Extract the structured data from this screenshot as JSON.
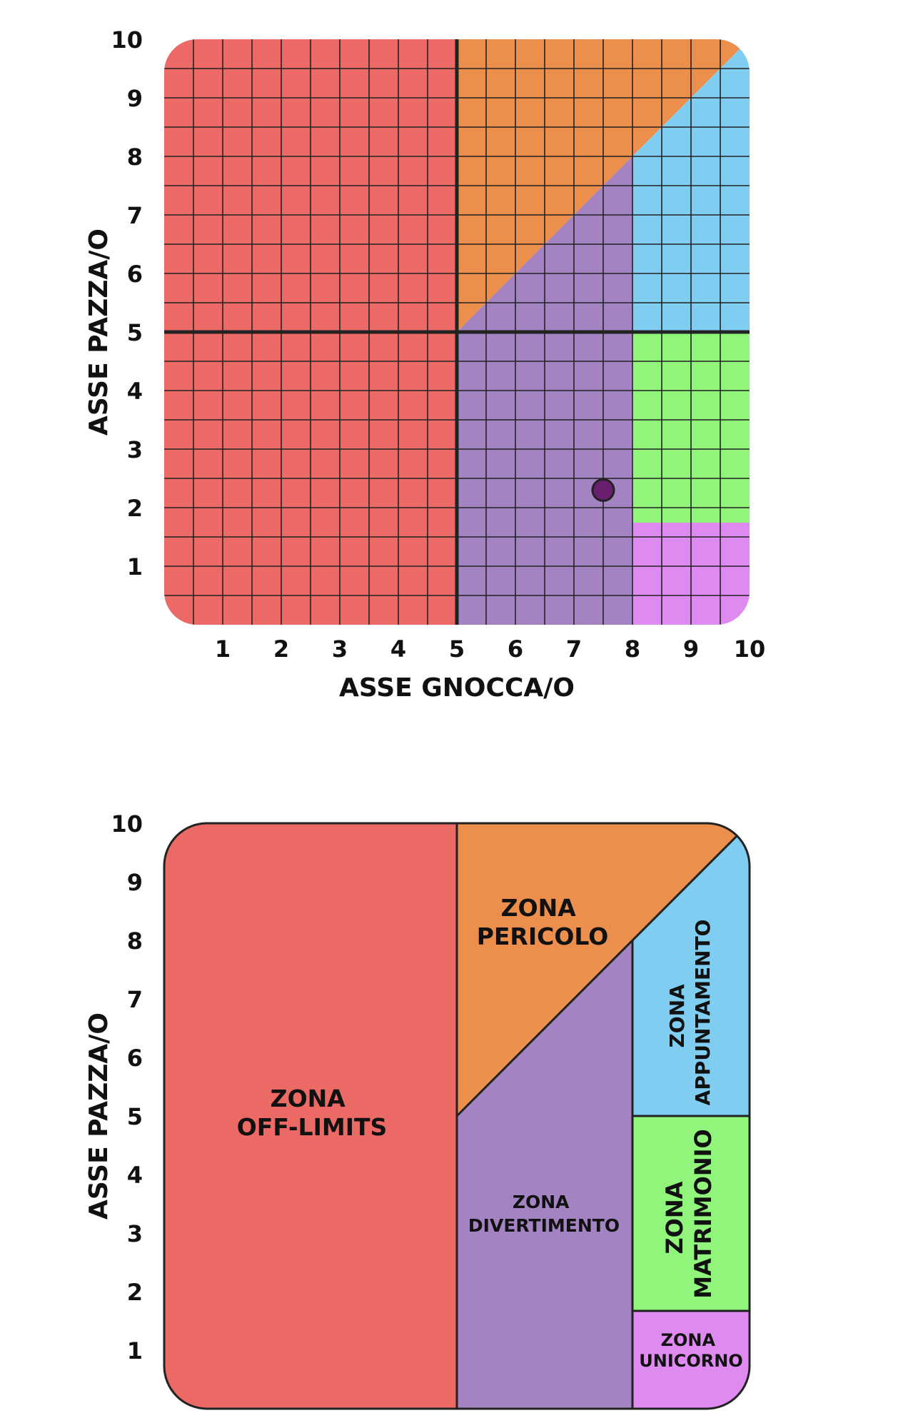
{
  "chart_data": [
    {
      "type": "scatter",
      "xlabel": "ASSE GNOCCA/O",
      "ylabel": "ASSE PAZZA/O",
      "xlim": [
        0,
        10
      ],
      "ylim": [
        0,
        10
      ],
      "xticks": [
        "1",
        "2",
        "3",
        "4",
        "5",
        "6",
        "7",
        "8",
        "9",
        "10"
      ],
      "yticks": [
        "1",
        "2",
        "3",
        "4",
        "5",
        "6",
        "7",
        "8",
        "9",
        "10"
      ],
      "grid": true,
      "grid_step": 0.5,
      "point": {
        "x": 7.5,
        "y": 2.3,
        "color": "#6a1f6e"
      }
    },
    {
      "type": "area",
      "ylabel": "ASSE PAZZA/O",
      "xlim": [
        0,
        10
      ],
      "ylim": [
        0,
        10
      ],
      "yticks": [
        "1",
        "2",
        "3",
        "4",
        "5",
        "6",
        "7",
        "8",
        "9",
        "10"
      ],
      "zones": [
        {
          "id": "off-limits",
          "lines": [
            "ZONA",
            "OFF-LIMITS"
          ],
          "color": "#ec6a65"
        },
        {
          "id": "pericolo",
          "lines": [
            "ZONA",
            "PERICOLO"
          ],
          "color": "#ec8f4d"
        },
        {
          "id": "divertimento",
          "lines": [
            "ZONA",
            "DIVERTIMENTO"
          ],
          "color": "#a383c2"
        },
        {
          "id": "appuntamento",
          "lines": [
            "ZONA",
            "APPUNTAMENTO"
          ],
          "color": "#80cdf2"
        },
        {
          "id": "matrimonio",
          "lines": [
            "ZONA",
            "MATRIMONIO"
          ],
          "color": "#90f57a"
        },
        {
          "id": "unicorno",
          "lines": [
            "ZONA",
            "UNICORNO"
          ],
          "color": "#df8af0"
        }
      ]
    }
  ]
}
